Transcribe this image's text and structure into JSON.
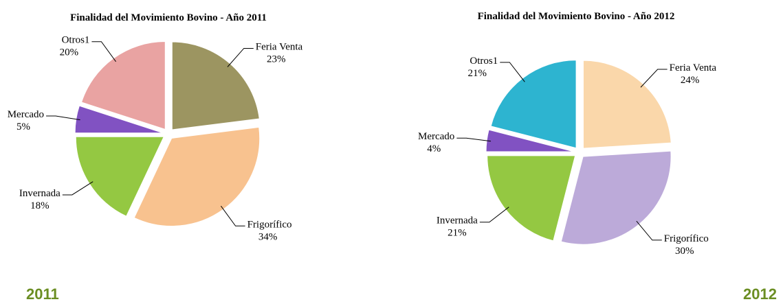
{
  "chart_data": [
    {
      "type": "pie",
      "title": "Finalidad del Movimiento Bovino - Año 2011",
      "categories": [
        "Feria Venta",
        "Frigorífico",
        "Invernada",
        "Mercado",
        "Otros1"
      ],
      "values": [
        23,
        34,
        18,
        5,
        20
      ],
      "value_labels": [
        "23%",
        "34%",
        "18%",
        "5%",
        "20%"
      ],
      "colors": [
        "#9c9561",
        "#f8c28f",
        "#94c842",
        "#8152c2",
        "#e9a3a2"
      ]
    },
    {
      "type": "pie",
      "title": "Finalidad del Movimiento Bovino - Año 2012",
      "categories": [
        "Feria Venta",
        "Frigorífico",
        "Invernada",
        "Mercado",
        "Otros1"
      ],
      "values": [
        24,
        30,
        21,
        4,
        21
      ],
      "value_labels": [
        "24%",
        "30%",
        "21%",
        "4%",
        "21%"
      ],
      "colors": [
        "#fad7aa",
        "#bcaad9",
        "#94c842",
        "#8152c2",
        "#2db4d0"
      ]
    }
  ],
  "captions": [
    "2011",
    "2012"
  ]
}
